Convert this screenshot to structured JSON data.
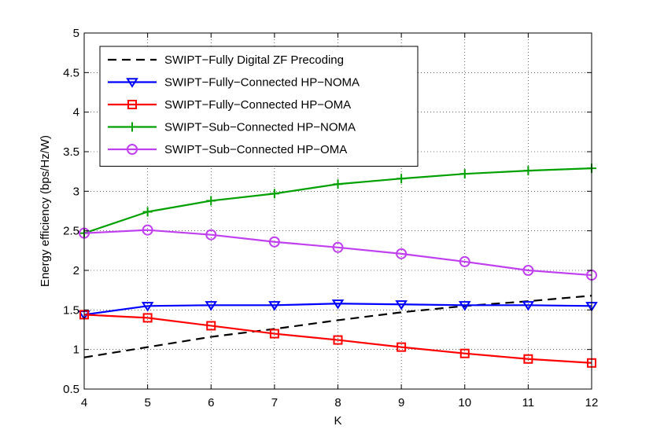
{
  "chart_data": {
    "type": "line",
    "title": "",
    "xlabel": "K",
    "ylabel": "Energy efficiency (bps/Hz/W)",
    "x": [
      4,
      5,
      6,
      7,
      8,
      9,
      10,
      11,
      12
    ],
    "xlim": [
      4,
      12
    ],
    "ylim": [
      0.5,
      5
    ],
    "xticks": [
      "4",
      "5",
      "6",
      "7",
      "8",
      "9",
      "10",
      "11",
      "12"
    ],
    "yticks": [
      "0.5",
      "1",
      "1.5",
      "2",
      "2.5",
      "3",
      "3.5",
      "4",
      "4.5",
      "5"
    ],
    "grid": true,
    "legend_position": "top-left",
    "series": [
      {
        "name": "SWIPT−Fully Digital ZF Precoding",
        "color": "#000000",
        "line_style": "dashed",
        "marker": "none",
        "values": [
          0.9,
          1.03,
          1.16,
          1.26,
          1.37,
          1.47,
          1.55,
          1.61,
          1.68
        ]
      },
      {
        "name": "SWIPT−Fully−Connected HP−NOMA",
        "color": "#0000ff",
        "line_style": "solid",
        "marker": "triangle-down",
        "values": [
          1.44,
          1.55,
          1.56,
          1.56,
          1.58,
          1.57,
          1.56,
          1.56,
          1.55
        ]
      },
      {
        "name": "SWIPT−Fully−Connected HP−OMA",
        "color": "#ff0000",
        "line_style": "solid",
        "marker": "square",
        "values": [
          1.44,
          1.4,
          1.3,
          1.2,
          1.12,
          1.03,
          0.95,
          0.88,
          0.83
        ]
      },
      {
        "name": "SWIPT−Sub−Connected HP−NOMA",
        "color": "#00a000",
        "line_style": "solid",
        "marker": "plus",
        "values": [
          2.47,
          2.74,
          2.88,
          2.97,
          3.09,
          3.16,
          3.22,
          3.26,
          3.29
        ]
      },
      {
        "name": "SWIPT−Sub−Connected HP−OMA",
        "color": "#c040f0",
        "line_style": "solid",
        "marker": "circle",
        "values": [
          2.47,
          2.51,
          2.45,
          2.36,
          2.29,
          2.21,
          2.11,
          2.0,
          1.94
        ]
      }
    ]
  }
}
